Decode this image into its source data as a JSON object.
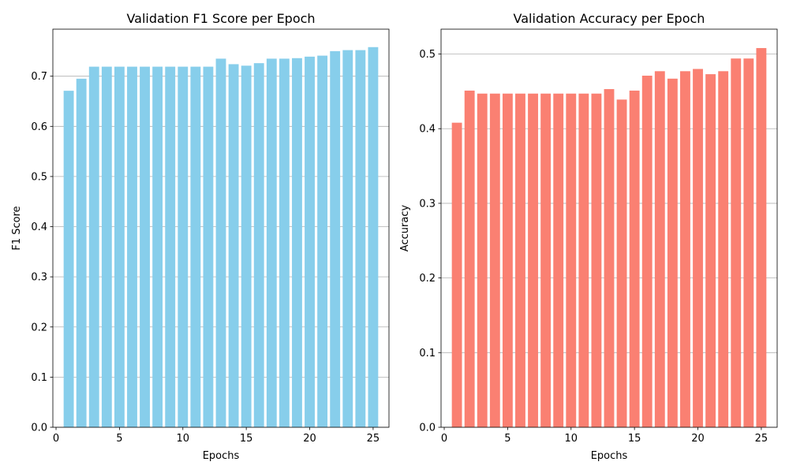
{
  "chart_data": [
    {
      "type": "bar",
      "title": "Validation F1 Score per Epoch",
      "xlabel": "Epochs",
      "ylabel": "F1 Score",
      "color": "#87CEEB",
      "grid": "y",
      "xlim": [
        -0.25,
        26.25
      ],
      "ylim": [
        0,
        0.7938
      ],
      "xticks": [
        "0",
        "5",
        "10",
        "15",
        "20",
        "25"
      ],
      "yticks": [
        "0.0",
        "0.1",
        "0.2",
        "0.3",
        "0.4",
        "0.5",
        "0.6",
        "0.7"
      ],
      "x": [
        1,
        2,
        3,
        4,
        5,
        6,
        7,
        8,
        9,
        10,
        11,
        12,
        13,
        14,
        15,
        16,
        17,
        18,
        19,
        20,
        21,
        22,
        23,
        24,
        25
      ],
      "values": [
        0.671,
        0.695,
        0.719,
        0.719,
        0.719,
        0.719,
        0.719,
        0.719,
        0.719,
        0.719,
        0.719,
        0.719,
        0.735,
        0.724,
        0.721,
        0.726,
        0.735,
        0.735,
        0.736,
        0.739,
        0.741,
        0.75,
        0.752,
        0.752,
        0.758
      ]
    },
    {
      "type": "bar",
      "title": "Validation Accuracy per Epoch",
      "xlabel": "Epochs",
      "ylabel": "Accuracy",
      "color": "#FA8072",
      "grid": "y",
      "xlim": [
        -0.25,
        26.25
      ],
      "ylim": [
        0,
        0.5333
      ],
      "xticks": [
        "0",
        "5",
        "10",
        "15",
        "20",
        "25"
      ],
      "yticks": [
        "0.0",
        "0.1",
        "0.2",
        "0.3",
        "0.4",
        "0.5"
      ],
      "x": [
        1,
        2,
        3,
        4,
        5,
        6,
        7,
        8,
        9,
        10,
        11,
        12,
        13,
        14,
        15,
        16,
        17,
        18,
        19,
        20,
        21,
        22,
        23,
        24,
        25
      ],
      "values": [
        0.408,
        0.451,
        0.447,
        0.447,
        0.447,
        0.447,
        0.447,
        0.447,
        0.447,
        0.447,
        0.447,
        0.447,
        0.453,
        0.439,
        0.451,
        0.471,
        0.477,
        0.467,
        0.477,
        0.48,
        0.473,
        0.477,
        0.494,
        0.494,
        0.508
      ]
    }
  ]
}
